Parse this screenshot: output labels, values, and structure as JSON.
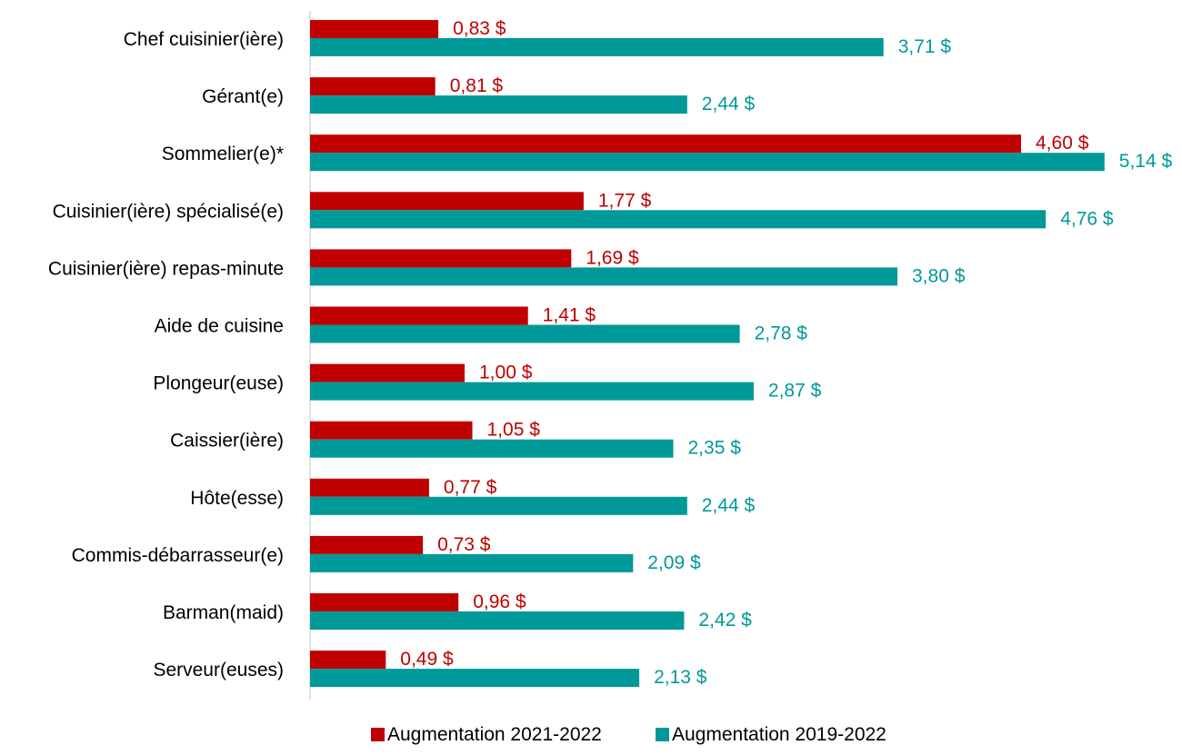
{
  "chart_data": {
    "type": "bar",
    "orientation": "horizontal",
    "categories": [
      "Chef cuisinier(ière)",
      "Gérant(e)",
      "Sommelier(e)*",
      "Cuisinier(ière) spécialisé(e)",
      "Cuisinier(ière) repas-minute",
      "Aide de cuisine",
      "Plongeur(euse)",
      "Caissier(ière)",
      "Hôte(esse)",
      "Commis-débarrasseur(e)",
      "Barman(maid)",
      "Serveur(euses)"
    ],
    "series": [
      {
        "name": "Augmentation 2021-2022",
        "color": "#C00000",
        "values": [
          0.83,
          0.81,
          4.6,
          1.77,
          1.69,
          1.41,
          1.0,
          1.05,
          0.77,
          0.73,
          0.96,
          0.49
        ],
        "labels": [
          "0,83 $",
          "0,81 $",
          "4,60 $",
          "1,77 $",
          "1,69 $",
          "1,41 $",
          "1,00 $",
          "1,05 $",
          "0,77 $",
          "0,73 $",
          "0,96 $",
          "0,49 $"
        ]
      },
      {
        "name": "Augmentation 2019-2022",
        "color": "#009999",
        "values": [
          3.71,
          2.44,
          5.14,
          4.76,
          3.8,
          2.78,
          2.87,
          2.35,
          2.44,
          2.09,
          2.42,
          2.13
        ],
        "labels": [
          "3,71 $",
          "2,44 $",
          "5,14 $",
          "4,76 $",
          "3,80 $",
          "2,78 $",
          "2,87 $",
          "2,35 $",
          "2,44 $",
          "2,09 $",
          "2,42 $",
          "2,13 $"
        ]
      }
    ],
    "xlim": [
      0,
      5.14
    ],
    "grid": false,
    "legend_position": "bottom-center",
    "axis_line_color": "#D9D9D9"
  }
}
